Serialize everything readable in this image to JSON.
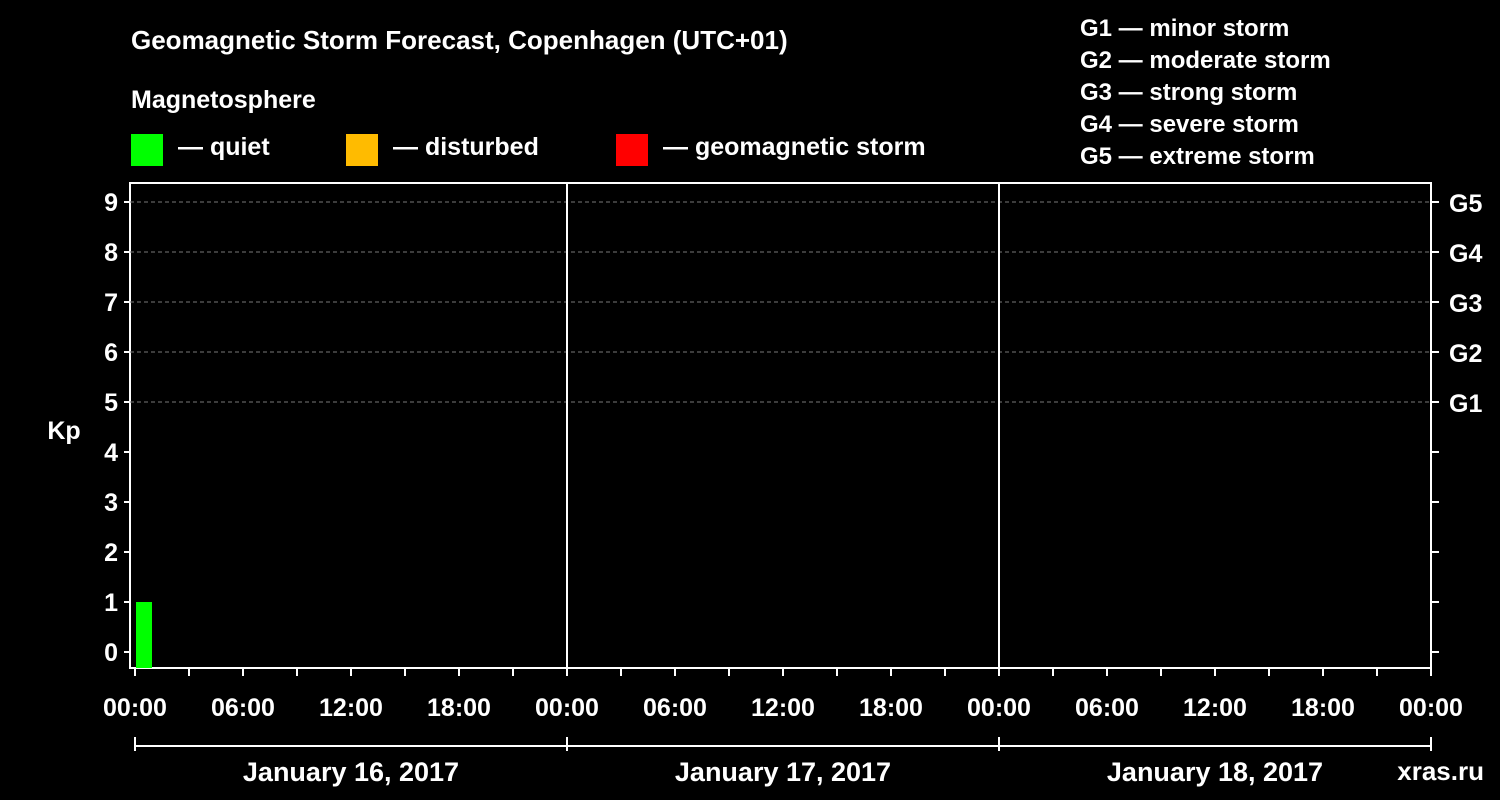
{
  "header": {
    "title": "Geomagnetic Storm Forecast, Copenhagen (UTC+01)",
    "magnetosphere_heading": "Magnetosphere"
  },
  "legend": [
    {
      "label": "— quiet",
      "color": "#00ff00"
    },
    {
      "label": "— disturbed",
      "color": "#ffbb00"
    },
    {
      "label": "— geomagnetic storm",
      "color": "#ff0000"
    }
  ],
  "storm_scale": [
    {
      "label": "G1 — minor storm"
    },
    {
      "label": "G2 — moderate storm"
    },
    {
      "label": "G3 — strong storm"
    },
    {
      "label": "G4 — severe storm"
    },
    {
      "label": "G5 — extreme storm"
    }
  ],
  "watermark": "xras.ru",
  "chart_data": {
    "type": "bar",
    "title": "Geomagnetic Storm Forecast, Copenhagen (UTC+01)",
    "ylabel": "Kp",
    "ylim": [
      0,
      9
    ],
    "y_ticks": [
      "0",
      "1",
      "2",
      "3",
      "4",
      "5",
      "6",
      "7",
      "8",
      "9"
    ],
    "right_axis_labels": [
      {
        "kp": 5,
        "label": "G1"
      },
      {
        "kp": 6,
        "label": "G2"
      },
      {
        "kp": 7,
        "label": "G3"
      },
      {
        "kp": 8,
        "label": "G4"
      },
      {
        "kp": 9,
        "label": "G5"
      }
    ],
    "x_range_hours": [
      0,
      72
    ],
    "x_tick_labels": [
      "00:00",
      "06:00",
      "12:00",
      "18:00",
      "00:00",
      "06:00",
      "12:00",
      "18:00",
      "00:00",
      "06:00",
      "12:00",
      "18:00",
      "00:00"
    ],
    "days": [
      "January 16, 2017",
      "January 17, 2017",
      "January 18, 2017"
    ],
    "bars": [
      {
        "start_hour": 0,
        "end_hour": 1,
        "kp": 1,
        "status": "quiet",
        "color": "#00ff00"
      }
    ],
    "grid": "dashed horizontal at Kp 5–9"
  }
}
